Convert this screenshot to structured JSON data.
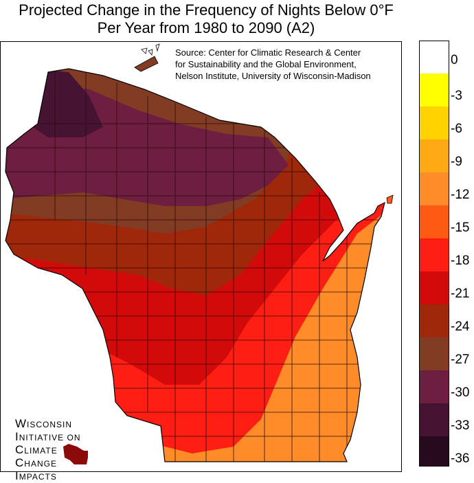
{
  "title": {
    "line1": "Projected Change in the Frequency of Nights Below 0°F",
    "line2": "Per Year from 1980 to 2090 (A2)"
  },
  "source": {
    "line1": "Source: Center for Climatic Research & Center",
    "line2": "for Sustainability and the Global Environment,",
    "line3": "Nelson Institute, University of Wisconsin-Madison"
  },
  "legend": {
    "items": [
      {
        "label": "0",
        "color": "#ffffff"
      },
      {
        "label": "-3",
        "color": "#ffff00"
      },
      {
        "label": "-6",
        "color": "#ffd200"
      },
      {
        "label": "-9",
        "color": "#ffaa14"
      },
      {
        "label": "-12",
        "color": "#ff8c28"
      },
      {
        "label": "-15",
        "color": "#ff5a14"
      },
      {
        "label": "-18",
        "color": "#ff1e14"
      },
      {
        "label": "-21",
        "color": "#d20a0a"
      },
      {
        "label": "-24",
        "color": "#a0280a"
      },
      {
        "label": "-27",
        "color": "#823c23"
      },
      {
        "label": "-30",
        "color": "#6e1e41"
      },
      {
        "label": "-33",
        "color": "#461432"
      },
      {
        "label": "-36",
        "color": "#280a1e"
      }
    ]
  },
  "logo": {
    "line1": "Wisconsin",
    "line2": "Initiative on",
    "line3": "Climate",
    "line4": "Change",
    "line5": "Impacts"
  }
}
